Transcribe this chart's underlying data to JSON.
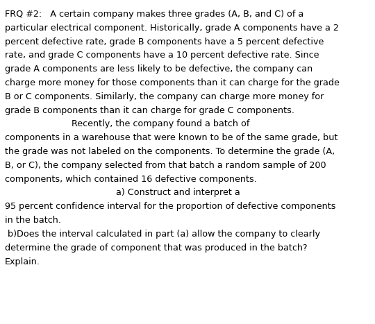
{
  "background_color": "#ffffff",
  "text_color": "#000000",
  "figsize": [
    5.4,
    4.67
  ],
  "dpi": 100,
  "fontsize": 9.2,
  "fontfamily": "DejaVu Sans",
  "linespacing": 1.55,
  "lines": [
    {
      "text": "FRQ #2:   A certain company makes three grades (A, B, and C) of a",
      "indent": 0
    },
    {
      "text": "particular electrical component. Historically, grade A components have a 2",
      "indent": 0
    },
    {
      "text": "percent defective rate, grade B components have a 5 percent defective",
      "indent": 0
    },
    {
      "text": "rate, and grade C components have a 10 percent defective rate. Since",
      "indent": 0
    },
    {
      "text": "grade A components are less likely to be defective, the company can",
      "indent": 0
    },
    {
      "text": "charge more money for those components than it can charge for the grade",
      "indent": 0
    },
    {
      "text": "B or C components. Similarly, the company can charge more money for",
      "indent": 0
    },
    {
      "text": "grade B components than it can charge for grade C components.",
      "indent": 0
    },
    {
      "text": "                        Recently, the company found a batch of",
      "indent": 0
    },
    {
      "text": "components in a warehouse that were known to be of the same grade, but",
      "indent": 0
    },
    {
      "text": "the grade was not labeled on the components. To determine the grade (A,",
      "indent": 0
    },
    {
      "text": "B, or C), the company selected from that batch a random sample of 200",
      "indent": 0
    },
    {
      "text": "components, which contained 16 defective components.",
      "indent": 0
    },
    {
      "text": "                                        a) Construct and interpret a",
      "indent": 0
    },
    {
      "text": "95 percent confidence interval for the proportion of defective components",
      "indent": 0
    },
    {
      "text": "in the batch.",
      "indent": 0
    },
    {
      "text": " b)Does the interval calculated in part (a) allow the company to clearly",
      "indent": 0
    },
    {
      "text": "determine the grade of component that was produced in the batch?",
      "indent": 0
    },
    {
      "text": "Explain.",
      "indent": 0
    }
  ]
}
